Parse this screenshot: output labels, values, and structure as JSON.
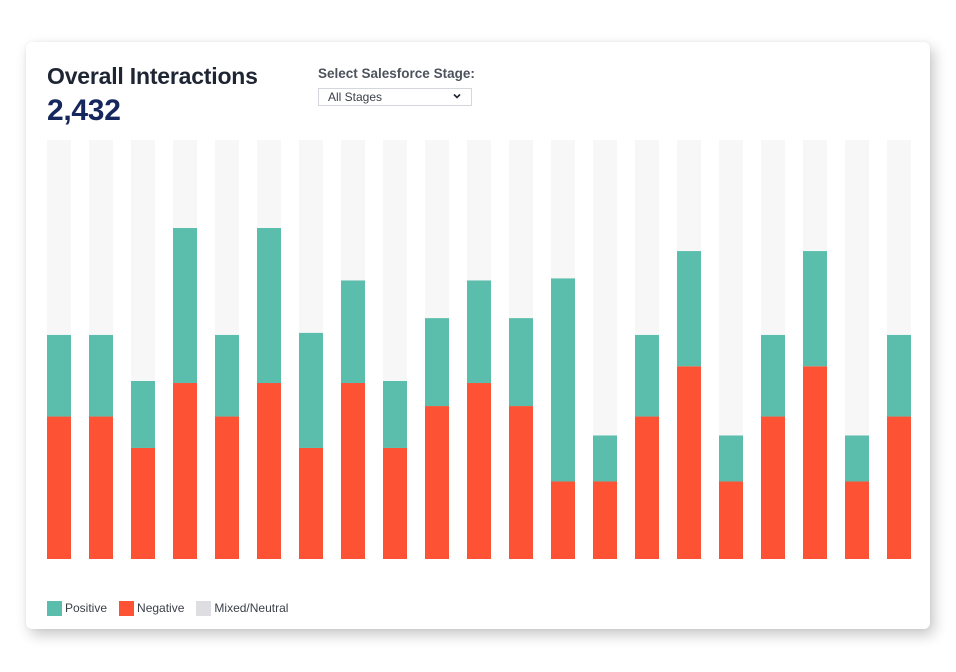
{
  "header": {
    "title": "Overall Interactions",
    "total": "2,432"
  },
  "filter": {
    "label": "Select Salesforce Stage:",
    "selected": "All Stages"
  },
  "colors": {
    "positive": "#5bbdab",
    "negative": "#fd5234",
    "neutral": "#f7f7f7",
    "legend_neutral": "#dedde2"
  },
  "chart_data": {
    "type": "bar",
    "stacked": true,
    "categories": [
      "",
      "",
      "",
      "",
      "",
      "",
      "",
      "",
      "",
      "",
      "",
      "",
      "",
      "",
      "",
      "",
      "",
      "",
      "",
      "",
      ""
    ],
    "ylim": [
      0,
      100
    ],
    "grid": false,
    "series": [
      {
        "name": "Negative",
        "values": [
          34,
          34,
          26.5,
          42,
          34,
          42,
          26.5,
          42,
          26.5,
          36.5,
          42,
          36.5,
          18.5,
          18.5,
          34,
          46,
          18.5,
          34,
          46,
          18.5,
          34
        ]
      },
      {
        "name": "Positive",
        "values": [
          19.5,
          19.5,
          16,
          37,
          19.5,
          37,
          27.5,
          24.5,
          16,
          21,
          24.5,
          21,
          48.5,
          11,
          19.5,
          27.5,
          11,
          19.5,
          27.5,
          11,
          19.5
        ]
      },
      {
        "name": "Mixed/Neutral",
        "values": [
          46.5,
          46.5,
          57.5,
          21,
          46.5,
          21,
          46,
          33.5,
          57.5,
          42.5,
          33.5,
          42.5,
          33,
          70.5,
          46.5,
          26.5,
          70.5,
          46.5,
          26.5,
          70.5,
          46.5
        ]
      }
    ],
    "legend": {
      "position": "bottom-left",
      "items": [
        "Positive",
        "Negative",
        "Mixed/Neutral"
      ]
    }
  }
}
